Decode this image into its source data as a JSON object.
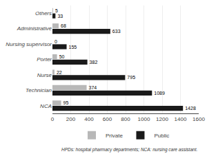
{
  "chart_data": {
    "type": "bar",
    "orientation": "horizontal",
    "categories": [
      "NCA",
      "Technician",
      "Nurse",
      "Porter",
      "Nursing supervisor",
      "Administrative",
      "Others"
    ],
    "series": [
      {
        "name": "Private",
        "color": "#b8b8b8",
        "values": [
          95,
          374,
          22,
          50,
          0,
          68,
          5
        ]
      },
      {
        "name": "Public",
        "color": "#1a1a1a",
        "values": [
          1428,
          1089,
          795,
          382,
          155,
          633,
          33
        ]
      }
    ],
    "xlim": [
      0,
      1600
    ],
    "xticks": [
      0,
      200,
      400,
      600,
      800,
      1000,
      1200,
      1400,
      1600
    ],
    "grid": true,
    "data_labels": true,
    "legend": "bottom",
    "annotations": [
      "HPDs: hospital pharmacy departments; NCA: nursing care assistant."
    ]
  }
}
